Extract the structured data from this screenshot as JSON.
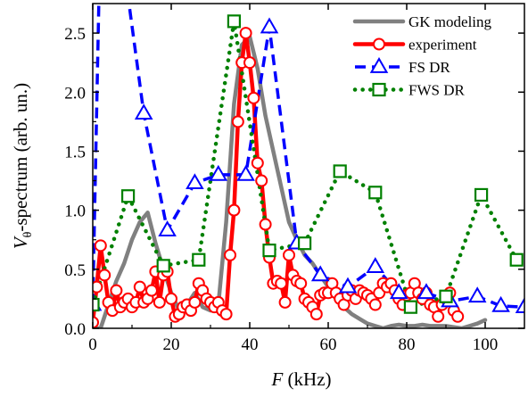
{
  "chart_data": {
    "type": "line",
    "xlabel": "F (kHz)",
    "xlabel_italic": "F",
    "xlabel_unit": "(kHz)",
    "ylabel": "Vθ-spectrum (arb. un.)",
    "ylabel_main": "V",
    "ylabel_sub": "θ",
    "ylabel_rest": "-spectrum  (arb. un.)",
    "xlim": [
      0,
      110
    ],
    "ylim": [
      0,
      2.75
    ],
    "xticks": [
      0,
      20,
      40,
      60,
      80,
      100
    ],
    "yticks": [
      0.0,
      0.5,
      1.0,
      1.5,
      2.0,
      2.5
    ],
    "ytick_labels": [
      "0.0",
      "0.5",
      "1.0",
      "1.5",
      "2.0",
      "2.5"
    ],
    "grid": false,
    "legend_position": "top-right",
    "series": [
      {
        "name": "GK modeling",
        "color": "#808080",
        "marker": "none",
        "style": "solid",
        "x": [
          0,
          2,
          4,
          6,
          8,
          10,
          12,
          14,
          16,
          18,
          20,
          22,
          24,
          26,
          28,
          30,
          32,
          34,
          36,
          38,
          40,
          42,
          44,
          46,
          48,
          50,
          52,
          54,
          56,
          58,
          60,
          62,
          64,
          66,
          68,
          70,
          72,
          74,
          76,
          78,
          80,
          82,
          84,
          86,
          88,
          90,
          92,
          94,
          96,
          98,
          100
        ],
        "values": [
          0.0,
          0.0,
          0.2,
          0.4,
          0.55,
          0.75,
          0.9,
          0.98,
          0.72,
          0.5,
          0.3,
          0.15,
          0.2,
          0.3,
          0.18,
          0.15,
          0.2,
          0.9,
          1.9,
          2.4,
          2.47,
          2.2,
          1.8,
          1.5,
          1.2,
          0.9,
          0.75,
          0.62,
          0.55,
          0.45,
          0.35,
          0.25,
          0.18,
          0.12,
          0.08,
          0.04,
          0.02,
          0.0,
          0.02,
          0.03,
          0.02,
          0.02,
          0.03,
          0.02,
          0.02,
          0.02,
          0.01,
          0.0,
          0.02,
          0.04,
          0.07
        ]
      },
      {
        "name": "experiment",
        "color": "#ff0000",
        "marker": "circle",
        "style": "solid",
        "x": [
          0,
          1,
          2,
          3,
          4,
          5,
          6,
          7,
          8,
          9,
          10,
          11,
          12,
          13,
          14,
          15,
          16,
          17,
          18,
          19,
          20,
          21,
          22,
          23,
          24,
          25,
          26,
          27,
          28,
          29,
          30,
          31,
          32,
          33,
          34,
          35,
          36,
          37,
          38,
          39,
          40,
          41,
          42,
          43,
          44,
          45,
          46,
          47,
          48,
          49,
          50,
          51,
          52,
          53,
          54,
          55,
          56,
          57,
          58,
          59,
          60,
          61,
          62,
          63,
          64,
          65,
          66,
          67,
          68,
          69,
          70,
          71,
          72,
          73,
          74,
          75,
          76,
          77,
          78,
          79,
          80,
          81,
          82,
          83,
          84,
          85,
          86,
          87,
          88,
          89,
          90,
          91,
          92,
          93
        ],
        "values": [
          0.05,
          0.35,
          0.7,
          0.45,
          0.22,
          0.15,
          0.32,
          0.18,
          0.22,
          0.25,
          0.18,
          0.22,
          0.35,
          0.22,
          0.25,
          0.32,
          0.48,
          0.22,
          0.45,
          0.48,
          0.25,
          0.1,
          0.12,
          0.18,
          0.2,
          0.15,
          0.22,
          0.38,
          0.32,
          0.25,
          0.22,
          0.18,
          0.22,
          0.15,
          0.12,
          0.62,
          1.0,
          1.75,
          2.25,
          2.5,
          2.25,
          1.95,
          1.4,
          1.25,
          0.88,
          0.6,
          0.38,
          0.4,
          0.38,
          0.22,
          0.62,
          0.45,
          0.4,
          0.38,
          0.25,
          0.22,
          0.18,
          0.12,
          0.28,
          0.3,
          0.3,
          0.38,
          0.3,
          0.25,
          0.2,
          0.28,
          0.32,
          0.25,
          0.32,
          0.3,
          0.28,
          0.25,
          0.2,
          0.3,
          0.38,
          0.35,
          0.38,
          0.32,
          0.25,
          0.2,
          0.28,
          0.3,
          0.38,
          0.3,
          0.25,
          0.3,
          0.2,
          0.18,
          0.1,
          0.2,
          0.25,
          0.3,
          0.15,
          0.1
        ]
      },
      {
        "name": "FS DR",
        "color": "#0000ff",
        "marker": "triangle",
        "style": "dashed",
        "x": [
          0,
          2,
          7,
          13,
          19,
          26,
          32,
          39,
          45,
          52,
          58,
          65,
          72,
          78,
          85,
          91,
          98,
          104,
          110
        ],
        "values": [
          0.2,
          3.5,
          3.3,
          1.82,
          0.83,
          1.23,
          1.3,
          1.3,
          2.55,
          0.72,
          0.45,
          0.35,
          0.52,
          0.3,
          0.3,
          0.23,
          0.27,
          0.19,
          0.18
        ]
      },
      {
        "name": "FWS DR",
        "color": "#008000",
        "marker": "square",
        "style": "dotted",
        "x": [
          0,
          9,
          18,
          27,
          36,
          45,
          54,
          63,
          72,
          81,
          90,
          99,
          108
        ],
        "values": [
          0.2,
          1.12,
          0.53,
          0.58,
          2.6,
          0.66,
          0.72,
          1.33,
          1.15,
          0.18,
          0.27,
          1.13,
          0.58
        ]
      }
    ]
  }
}
